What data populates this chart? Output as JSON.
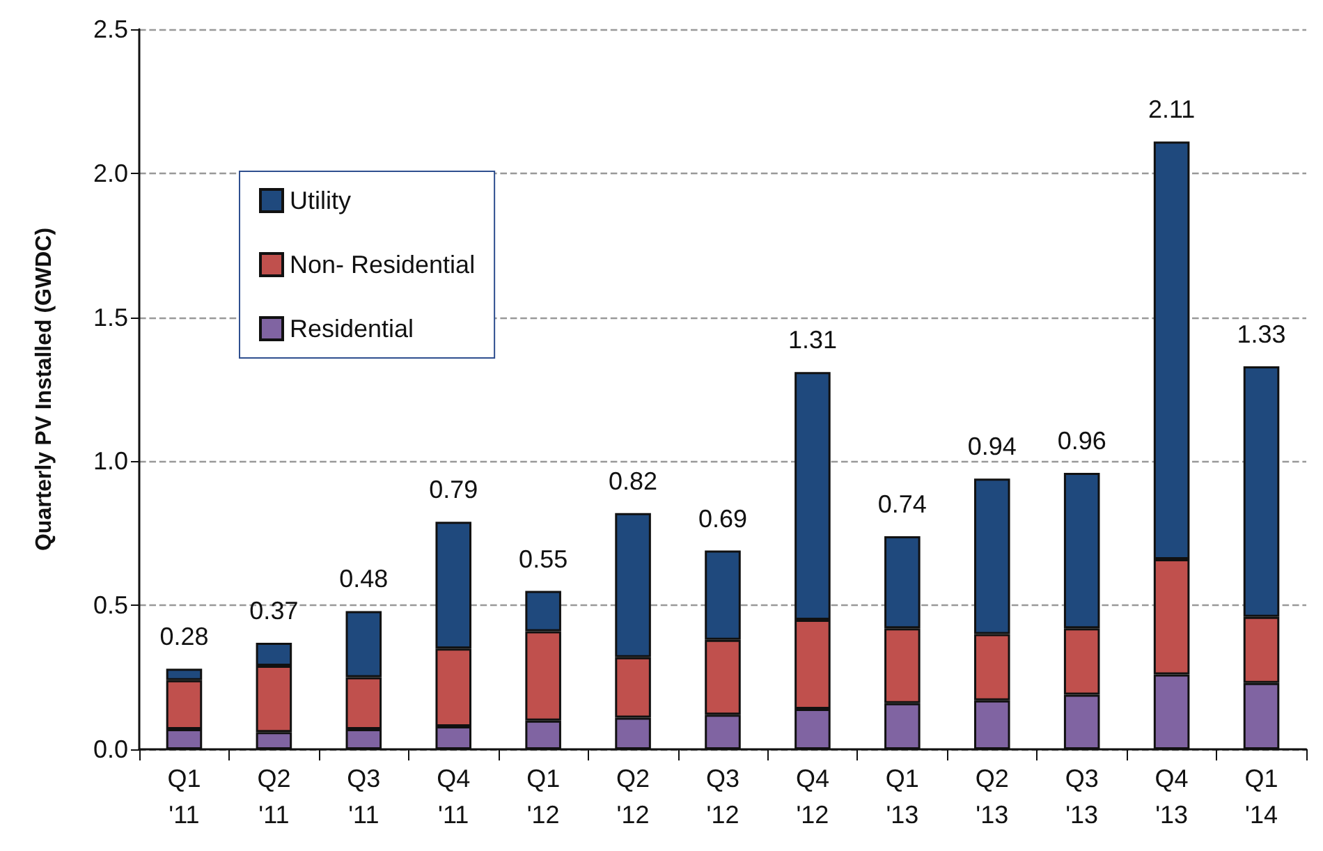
{
  "chart_data": {
    "type": "bar",
    "ylabel": "Quarterly PV Installed (GWDC)",
    "stacked": true,
    "categories": [
      "Q1\n'11",
      "Q2\n'11",
      "Q3\n'11",
      "Q4\n'11",
      "Q1\n'12",
      "Q2\n'12",
      "Q3\n'12",
      "Q4\n'12",
      "Q1\n'13",
      "Q2\n'13",
      "Q3\n'13",
      "Q4\n'13",
      "Q1\n'14"
    ],
    "series": [
      {
        "name": "Residential",
        "color": "#8064a2",
        "values": [
          0.07,
          0.06,
          0.07,
          0.08,
          0.1,
          0.11,
          0.12,
          0.14,
          0.16,
          0.17,
          0.19,
          0.26,
          0.23
        ]
      },
      {
        "name": "Non- Residential",
        "color": "#c0504d",
        "values": [
          0.17,
          0.23,
          0.18,
          0.27,
          0.31,
          0.21,
          0.26,
          0.31,
          0.26,
          0.23,
          0.23,
          0.4,
          0.23
        ]
      },
      {
        "name": "Utility",
        "color": "#1f497d",
        "values": [
          0.04,
          0.08,
          0.23,
          0.44,
          0.14,
          0.5,
          0.31,
          0.86,
          0.32,
          0.54,
          0.54,
          1.45,
          0.87
        ]
      }
    ],
    "totals": [
      "0.28",
      "0.37",
      "0.48",
      "0.79",
      "0.55",
      "0.82",
      "0.69",
      "1.31",
      "0.74",
      "0.94",
      "0.96",
      "2.11",
      "1.33"
    ],
    "ylim": [
      0,
      2.5
    ],
    "yticks": [
      {
        "value": 0,
        "label": "0.0"
      },
      {
        "value": 0.5,
        "label": "0.5"
      },
      {
        "value": 1,
        "label": "1.0"
      },
      {
        "value": 1.5,
        "label": "1.5"
      },
      {
        "value": 2,
        "label": "2.0"
      },
      {
        "value": 2.5,
        "label": "2.5"
      }
    ],
    "grid": "y",
    "legend": "top left"
  }
}
